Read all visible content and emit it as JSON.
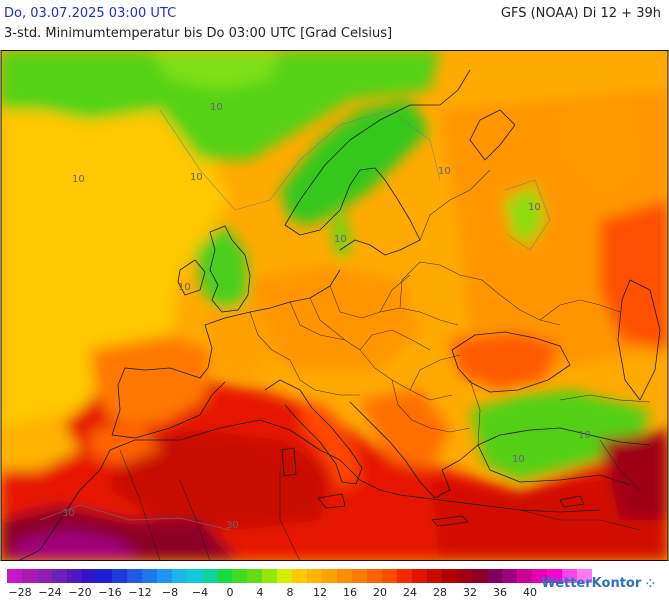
{
  "header": {
    "date": "Do, 03.07.2025 03:00 UTC",
    "subtitle": "3-std. Minimumtemperatur bis Do 03:00 UTC [Grad Celsius]",
    "model": "GFS (NOAA) Di 12 + 39h"
  },
  "map": {
    "contour_labels": [
      "10",
      "10",
      "10",
      "10",
      "10",
      "10",
      "10",
      "10",
      "10",
      "30",
      "30"
    ]
  },
  "legend": {
    "colors": [
      "#c816c8",
      "#a81ab0",
      "#8c1eb4",
      "#6e1eb9",
      "#5018be",
      "#3214c8",
      "#1b1ed2",
      "#1e3cdc",
      "#2058e6",
      "#1e78ec",
      "#1e96f0",
      "#1eb4ee",
      "#14c8dc",
      "#10d2a0",
      "#14dc3c",
      "#3cdc1e",
      "#64dc14",
      "#96e60a",
      "#d2f000",
      "#ffc800",
      "#ffb400",
      "#ffa000",
      "#ff8c00",
      "#ff7800",
      "#ff6400",
      "#ff4b00",
      "#f52800",
      "#e11400",
      "#c80a00",
      "#b40000",
      "#a00014",
      "#8c0028",
      "#82005a",
      "#a0007d",
      "#c80096",
      "#e600b4",
      "#ff00d2",
      "#ff46e6",
      "#ff7af0"
    ],
    "ticks": [
      "−28",
      "−24",
      "−20",
      "−16",
      "−12",
      "−8",
      "−4",
      "0",
      "4",
      "8",
      "12",
      "16",
      "20",
      "24",
      "28",
      "32",
      "36",
      "40"
    ]
  },
  "brand": {
    "name": "WetterKontor",
    "icon": "sun-dots-icon"
  }
}
